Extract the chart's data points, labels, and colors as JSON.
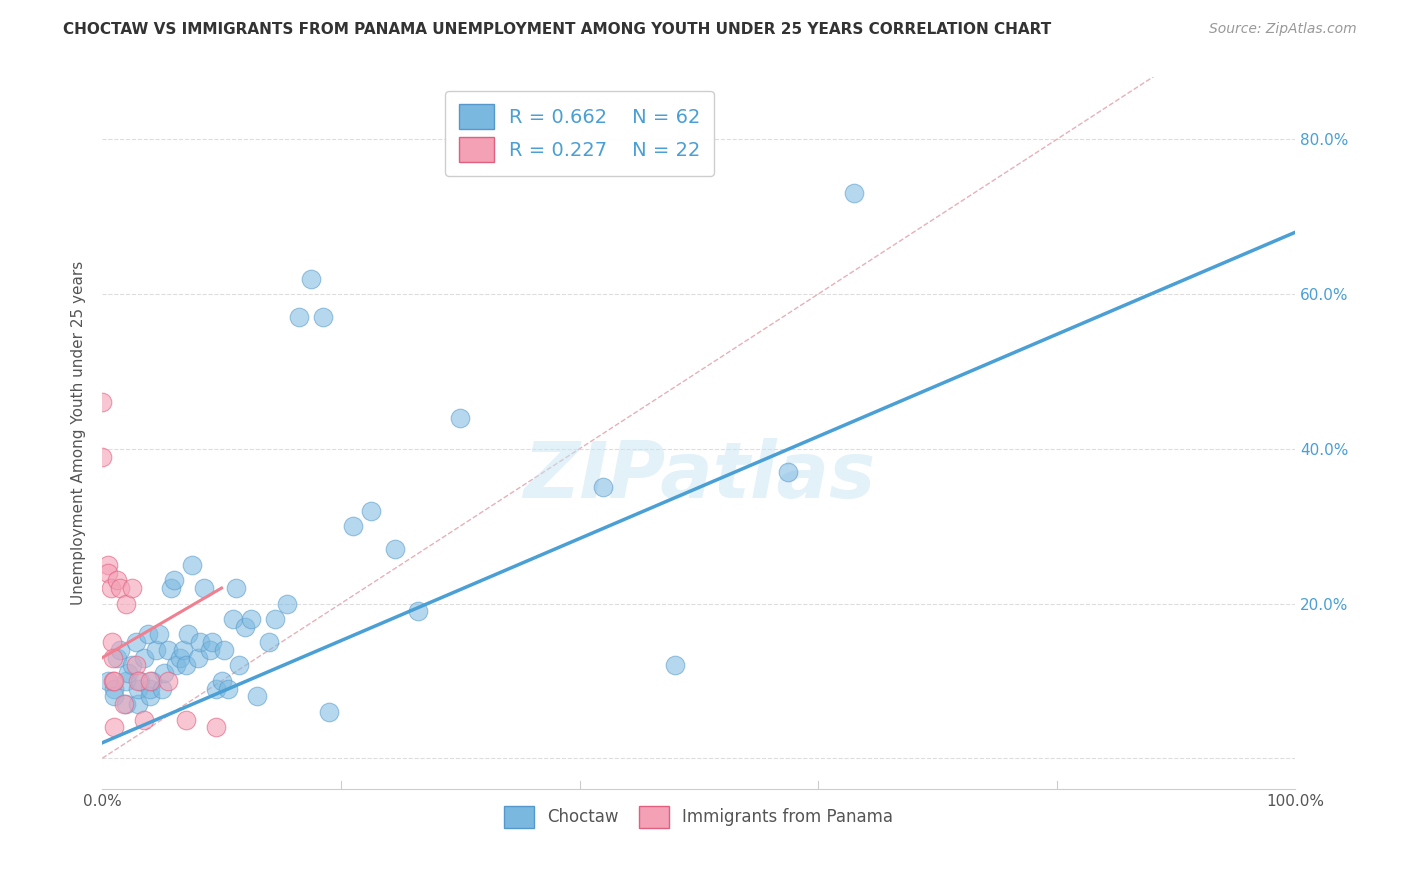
{
  "title": "CHOCTAW VS IMMIGRANTS FROM PANAMA UNEMPLOYMENT AMONG YOUTH UNDER 25 YEARS CORRELATION CHART",
  "source": "Source: ZipAtlas.com",
  "ylabel": "Unemployment Among Youth under 25 years",
  "xlim": [
    0.0,
    1.0
  ],
  "ylim": [
    -0.04,
    0.88
  ],
  "xticks": [
    0.0,
    0.2,
    0.4,
    0.6,
    0.8,
    1.0
  ],
  "xticklabels": [
    "0.0%",
    "",
    "",
    "",
    "",
    "100.0%"
  ],
  "yticks": [
    0.0,
    0.2,
    0.4,
    0.6,
    0.8
  ],
  "yticklabels": [
    "",
    "20.0%",
    "40.0%",
    "60.0%",
    "80.0%"
  ],
  "background_color": "#ffffff",
  "watermark": "ZIPatlas",
  "legend_R1": "R = 0.662",
  "legend_N1": "N = 62",
  "legend_R2": "R = 0.227",
  "legend_N2": "N = 22",
  "choctaw_color": "#7ab8e0",
  "panama_color": "#f4a0b5",
  "trendline1_color": "#4a9fd4",
  "trendline2_color": "#f08090",
  "diagonal_color": "#e8b0b8",
  "choctaw_points": [
    [
      0.005,
      0.1
    ],
    [
      0.01,
      0.09
    ],
    [
      0.01,
      0.08
    ],
    [
      0.012,
      0.13
    ],
    [
      0.015,
      0.14
    ],
    [
      0.02,
      0.07
    ],
    [
      0.02,
      0.1
    ],
    [
      0.022,
      0.11
    ],
    [
      0.025,
      0.12
    ],
    [
      0.028,
      0.15
    ],
    [
      0.03,
      0.07
    ],
    [
      0.03,
      0.09
    ],
    [
      0.032,
      0.1
    ],
    [
      0.035,
      0.13
    ],
    [
      0.038,
      0.16
    ],
    [
      0.04,
      0.08
    ],
    [
      0.04,
      0.09
    ],
    [
      0.042,
      0.1
    ],
    [
      0.045,
      0.14
    ],
    [
      0.048,
      0.16
    ],
    [
      0.05,
      0.09
    ],
    [
      0.052,
      0.11
    ],
    [
      0.055,
      0.14
    ],
    [
      0.058,
      0.22
    ],
    [
      0.06,
      0.23
    ],
    [
      0.062,
      0.12
    ],
    [
      0.065,
      0.13
    ],
    [
      0.068,
      0.14
    ],
    [
      0.07,
      0.12
    ],
    [
      0.072,
      0.16
    ],
    [
      0.075,
      0.25
    ],
    [
      0.08,
      0.13
    ],
    [
      0.082,
      0.15
    ],
    [
      0.085,
      0.22
    ],
    [
      0.09,
      0.14
    ],
    [
      0.092,
      0.15
    ],
    [
      0.095,
      0.09
    ],
    [
      0.1,
      0.1
    ],
    [
      0.102,
      0.14
    ],
    [
      0.105,
      0.09
    ],
    [
      0.11,
      0.18
    ],
    [
      0.112,
      0.22
    ],
    [
      0.115,
      0.12
    ],
    [
      0.12,
      0.17
    ],
    [
      0.125,
      0.18
    ],
    [
      0.13,
      0.08
    ],
    [
      0.14,
      0.15
    ],
    [
      0.145,
      0.18
    ],
    [
      0.155,
      0.2
    ],
    [
      0.165,
      0.57
    ],
    [
      0.175,
      0.62
    ],
    [
      0.185,
      0.57
    ],
    [
      0.19,
      0.06
    ],
    [
      0.21,
      0.3
    ],
    [
      0.225,
      0.32
    ],
    [
      0.245,
      0.27
    ],
    [
      0.265,
      0.19
    ],
    [
      0.3,
      0.44
    ],
    [
      0.42,
      0.35
    ],
    [
      0.48,
      0.12
    ],
    [
      0.575,
      0.37
    ],
    [
      0.63,
      0.73
    ]
  ],
  "panama_points": [
    [
      0.0,
      0.46
    ],
    [
      0.0,
      0.39
    ],
    [
      0.005,
      0.25
    ],
    [
      0.005,
      0.24
    ],
    [
      0.007,
      0.22
    ],
    [
      0.008,
      0.15
    ],
    [
      0.009,
      0.13
    ],
    [
      0.009,
      0.1
    ],
    [
      0.01,
      0.1
    ],
    [
      0.01,
      0.04
    ],
    [
      0.012,
      0.23
    ],
    [
      0.015,
      0.22
    ],
    [
      0.018,
      0.07
    ],
    [
      0.02,
      0.2
    ],
    [
      0.025,
      0.22
    ],
    [
      0.028,
      0.12
    ],
    [
      0.03,
      0.1
    ],
    [
      0.035,
      0.05
    ],
    [
      0.04,
      0.1
    ],
    [
      0.055,
      0.1
    ],
    [
      0.07,
      0.05
    ],
    [
      0.095,
      0.04
    ]
  ],
  "trendline1_x": [
    0.0,
    1.0
  ],
  "trendline1_y": [
    0.02,
    0.68
  ],
  "trendline2_x": [
    0.0,
    0.1
  ],
  "trendline2_y": [
    0.13,
    0.22
  ]
}
